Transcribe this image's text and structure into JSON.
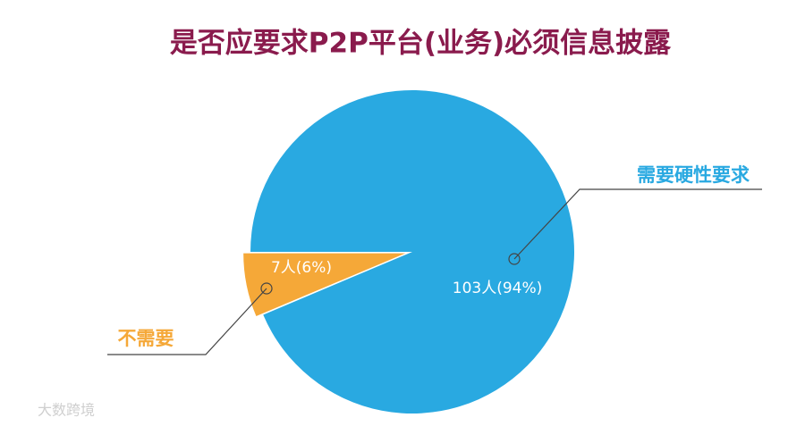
{
  "chart_data": {
    "type": "pie",
    "title": "是否应要求P2P平台(业务)必须信息披露",
    "categories": [
      "需要硬性要求",
      "不需要"
    ],
    "values": [
      103,
      7
    ],
    "value_labels": [
      "103人(94%)",
      "7人(6%)"
    ],
    "colors": [
      "#29a9e1",
      "#f5a838"
    ]
  },
  "watermark": "大数跨境"
}
